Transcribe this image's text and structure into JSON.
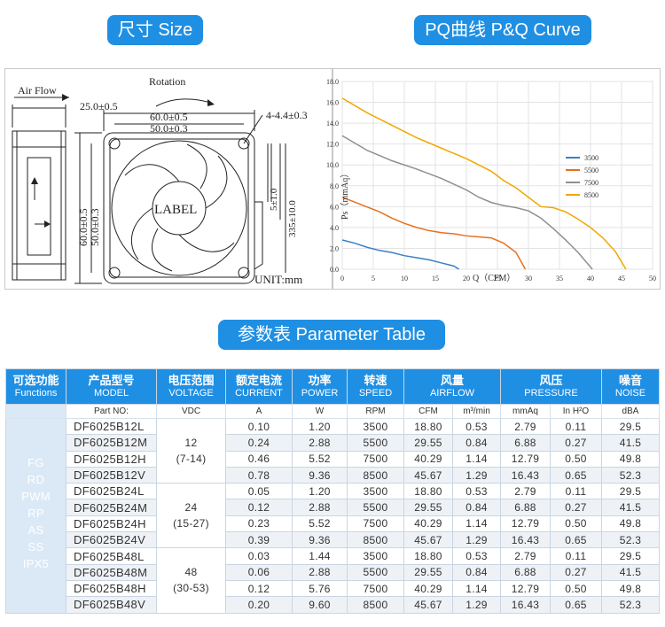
{
  "headers": {
    "size": "尺寸 Size",
    "pq": "PQ曲线 P&Q Curve",
    "param": "参数表 Parameter Table"
  },
  "drawing": {
    "air_flow": "Air Flow",
    "rotation": "Rotation",
    "dim_depth": "25.0±0.5",
    "dim_width_outer": "60.0±0.5",
    "dim_width_hole": "50.0±0.3",
    "dim_hole_dia": "4-4.4±0.3",
    "dim_height_outer": "60.0±0.5",
    "dim_height_hole": "50.0±0.3",
    "dim_lead_strip": "5±1.0",
    "dim_lead_len": "335±10.0",
    "label": "LABEL",
    "unit": "UNIT:mm"
  },
  "chart_data": {
    "type": "line",
    "title": "",
    "xlabel": "Q（CFM）",
    "ylabel": "Ps（mmAq）",
    "xlim": [
      0,
      50
    ],
    "ylim": [
      0,
      18
    ],
    "x_ticks": [
      0,
      5,
      10,
      15,
      20,
      25,
      30,
      35,
      40,
      45,
      50
    ],
    "y_ticks": [
      0.0,
      2.0,
      4.0,
      6.0,
      8.0,
      10.0,
      12.0,
      14.0,
      16.0,
      18.0
    ],
    "legend_position": "right-middle",
    "grid": true,
    "series": [
      {
        "name": "3500",
        "color": "#3a7fc6",
        "points": [
          [
            0,
            2.8
          ],
          [
            2,
            2.5
          ],
          [
            4,
            2.1
          ],
          [
            6,
            1.8
          ],
          [
            8,
            1.6
          ],
          [
            10,
            1.3
          ],
          [
            12,
            1.1
          ],
          [
            14,
            0.9
          ],
          [
            16,
            0.6
          ],
          [
            18,
            0.3
          ],
          [
            18.8,
            0.0
          ]
        ]
      },
      {
        "name": "5500",
        "color": "#e8701f",
        "points": [
          [
            0,
            6.9
          ],
          [
            3,
            6.2
          ],
          [
            6,
            5.5
          ],
          [
            8,
            4.9
          ],
          [
            10,
            4.4
          ],
          [
            12,
            4.0
          ],
          [
            14,
            3.7
          ],
          [
            16,
            3.5
          ],
          [
            18,
            3.4
          ],
          [
            20,
            3.2
          ],
          [
            22,
            3.1
          ],
          [
            24,
            3.0
          ],
          [
            26,
            2.5
          ],
          [
            28,
            1.6
          ],
          [
            29.5,
            0.0
          ]
        ]
      },
      {
        "name": "7500",
        "color": "#8f8f8f",
        "points": [
          [
            0,
            12.8
          ],
          [
            4,
            11.4
          ],
          [
            8,
            10.4
          ],
          [
            12,
            9.6
          ],
          [
            16,
            8.7
          ],
          [
            20,
            7.6
          ],
          [
            22,
            6.9
          ],
          [
            24,
            6.4
          ],
          [
            26,
            6.1
          ],
          [
            28,
            5.9
          ],
          [
            30,
            5.6
          ],
          [
            32,
            4.9
          ],
          [
            34,
            3.9
          ],
          [
            36,
            2.8
          ],
          [
            38,
            1.6
          ],
          [
            40.3,
            0.0
          ]
        ]
      },
      {
        "name": "8500",
        "color": "#f0a800",
        "points": [
          [
            0,
            16.4
          ],
          [
            4,
            15.0
          ],
          [
            8,
            13.8
          ],
          [
            12,
            12.6
          ],
          [
            16,
            11.6
          ],
          [
            20,
            10.6
          ],
          [
            24,
            9.4
          ],
          [
            26,
            8.5
          ],
          [
            28,
            7.8
          ],
          [
            30,
            6.9
          ],
          [
            32,
            6.0
          ],
          [
            34,
            5.9
          ],
          [
            36,
            5.5
          ],
          [
            38,
            4.8
          ],
          [
            40,
            4.0
          ],
          [
            42,
            3.0
          ],
          [
            44,
            1.7
          ],
          [
            45.7,
            0.0
          ]
        ]
      }
    ]
  },
  "table": {
    "head1": [
      {
        "zh": "可选功能",
        "en": "Functions"
      },
      {
        "zh": "产品型号",
        "en": "MODEL"
      },
      {
        "zh": "电压范围",
        "en": "VOLTAGE"
      },
      {
        "zh": "额定电流",
        "en": "CURRENT"
      },
      {
        "zh": "功率",
        "en": "POWER"
      },
      {
        "zh": "转速",
        "en": "SPEED"
      },
      {
        "zh": "风量",
        "en": "AIRFLOW"
      },
      {
        "zh": "风压",
        "en": "PRESSURE"
      },
      {
        "zh": "噪音",
        "en": "NOISE"
      }
    ],
    "units": [
      "Part NO:",
      "VDC",
      "A",
      "W",
      "RPM",
      "CFM",
      "m³/min",
      "mmAq",
      "In H²O",
      "dBA"
    ],
    "functions": [
      "FG",
      "RD",
      "PWM",
      "RP",
      "AS",
      "SS",
      "IPX5"
    ],
    "voltage_groups": [
      {
        "v": "12",
        "range": "(7-14)"
      },
      {
        "v": "24",
        "range": "(15-27)"
      },
      {
        "v": "48",
        "range": "(30-53)"
      }
    ],
    "rows": [
      [
        "DF6025B12L",
        "0.10",
        "1.20",
        "3500",
        "18.80",
        "0.53",
        "2.79",
        "0.11",
        "29.5"
      ],
      [
        "DF6025B12M",
        "0.24",
        "2.88",
        "5500",
        "29.55",
        "0.84",
        "6.88",
        "0.27",
        "41.5"
      ],
      [
        "DF6025B12H",
        "0.46",
        "5.52",
        "7500",
        "40.29",
        "1.14",
        "12.79",
        "0.50",
        "49.8"
      ],
      [
        "DF6025B12V",
        "0.78",
        "9.36",
        "8500",
        "45.67",
        "1.29",
        "16.43",
        "0.65",
        "52.3"
      ],
      [
        "DF6025B24L",
        "0.05",
        "1.20",
        "3500",
        "18.80",
        "0.53",
        "2.79",
        "0.11",
        "29.5"
      ],
      [
        "DF6025B24M",
        "0.12",
        "2.88",
        "5500",
        "29.55",
        "0.84",
        "6.88",
        "0.27",
        "41.5"
      ],
      [
        "DF6025B24H",
        "0.23",
        "5.52",
        "7500",
        "40.29",
        "1.14",
        "12.79",
        "0.50",
        "49.8"
      ],
      [
        "DF6025B24V",
        "0.39",
        "9.36",
        "8500",
        "45.67",
        "1.29",
        "16.43",
        "0.65",
        "52.3"
      ],
      [
        "DF6025B48L",
        "0.03",
        "1.44",
        "3500",
        "18.80",
        "0.53",
        "2.79",
        "0.11",
        "29.5"
      ],
      [
        "DF6025B48M",
        "0.06",
        "2.88",
        "5500",
        "29.55",
        "0.84",
        "6.88",
        "0.27",
        "41.5"
      ],
      [
        "DF6025B48H",
        "0.12",
        "5.76",
        "7500",
        "40.29",
        "1.14",
        "12.79",
        "0.50",
        "49.8"
      ],
      [
        "DF6025B48V",
        "0.20",
        "9.60",
        "8500",
        "45.67",
        "1.29",
        "16.43",
        "0.65",
        "52.3"
      ]
    ]
  }
}
